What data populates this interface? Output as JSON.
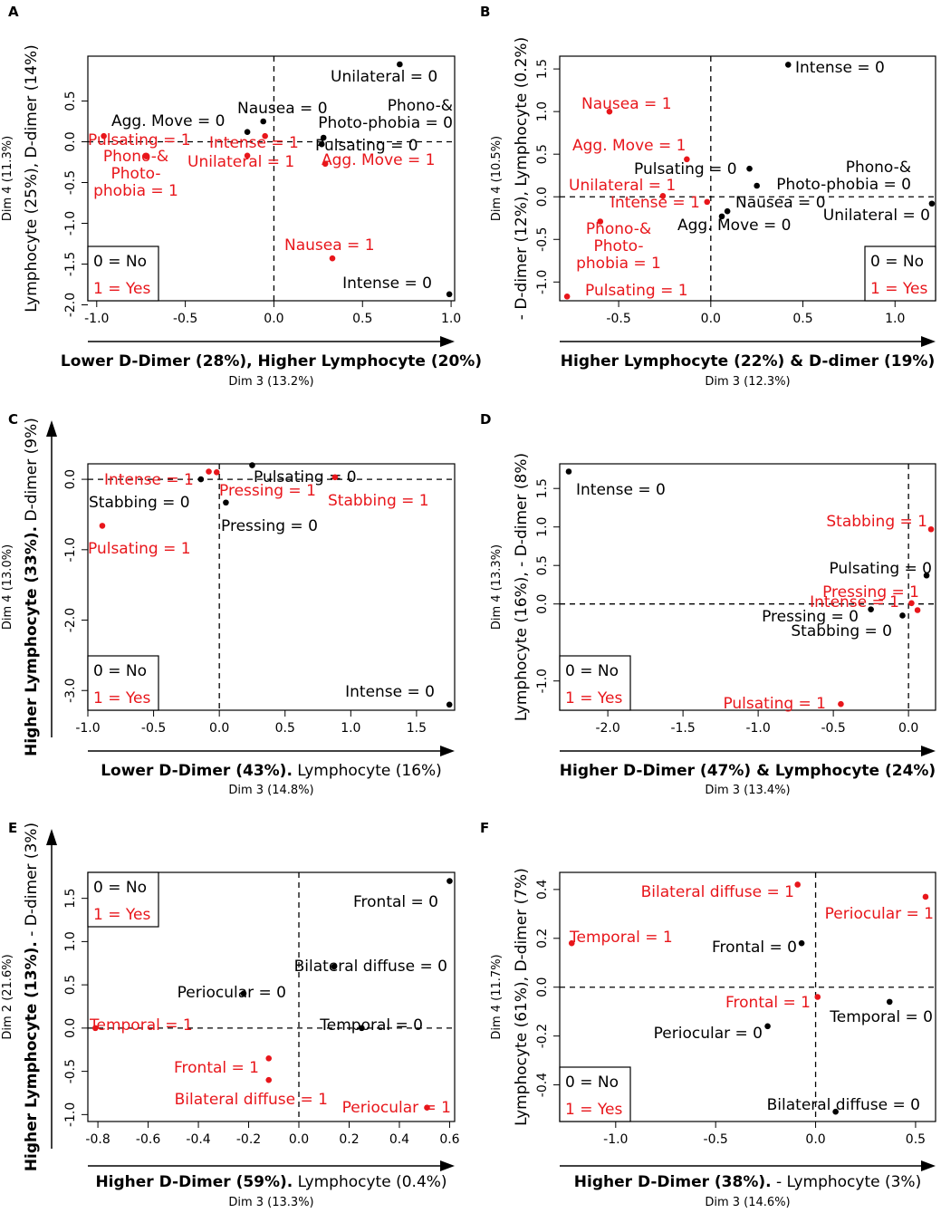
{
  "legend": {
    "no": "0 = No",
    "yes": "1 = Yes"
  },
  "colors": {
    "no": "#000000",
    "yes": "#e8161b"
  },
  "chart_data": [
    {
      "type": "scatter",
      "panel": "A",
      "title": "",
      "xlabel": "Lower D-Dimer (28%), Higher Lymphocyte (20%)",
      "xlabel_bold": "Lower D-Dimer (28%), Higher Lymphocyte (20%)",
      "xlabel_rest": "",
      "xsub": "Dim 3 (13.2%)",
      "ylabel": "Lymphocyte (25%), D-dimer (14%)",
      "ysub": "Dim 4 (11.3%)",
      "xlim": [
        -1.05,
        1.02
      ],
      "ylim": [
        -1.95,
        1.05
      ],
      "xticks": [
        -1.0,
        -0.5,
        0.0,
        0.5,
        1.0
      ],
      "xtick_labels": [
        "-1.0",
        "-0.5",
        "0.0",
        "0.5",
        "1.0"
      ],
      "yticks": [
        -2.0,
        -1.5,
        -1.0,
        -0.5,
        0.0,
        0.5
      ],
      "ytick_labels": [
        "-2.0",
        "-1.5",
        "-1.0",
        "-0.5",
        "0.0",
        "0.5"
      ],
      "legend_position": "bottom-left",
      "points": [
        {
          "x": 0.71,
          "y": 0.95,
          "label": "Unilateral = 0",
          "group": "no"
        },
        {
          "x": -0.06,
          "y": 0.25,
          "label": "Nausea = 0",
          "group": "no"
        },
        {
          "x": 0.28,
          "y": 0.05,
          "label": "Phono-& Photo-phobia = 0",
          "group": "no"
        },
        {
          "x": -0.15,
          "y": 0.12,
          "label": "Agg. Move = 0",
          "group": "no"
        },
        {
          "x": 0.27,
          "y": -0.03,
          "label": "Pulsating = 0",
          "group": "no"
        },
        {
          "x": 0.99,
          "y": -1.87,
          "label": "Intense = 0",
          "group": "no"
        },
        {
          "x": -0.96,
          "y": 0.07,
          "label": "Pulsating = 1",
          "group": "yes"
        },
        {
          "x": -0.05,
          "y": 0.07,
          "label": "Intense = 1",
          "group": "yes"
        },
        {
          "x": -0.72,
          "y": -0.18,
          "label": "Phono-& Photo-phobia = 1",
          "group": "yes"
        },
        {
          "x": -0.15,
          "y": -0.17,
          "label": "Unilateral = 1",
          "group": "yes"
        },
        {
          "x": 0.29,
          "y": -0.27,
          "label": "Agg. Move = 1",
          "group": "yes"
        },
        {
          "x": 0.33,
          "y": -1.43,
          "label": "Nausea = 1",
          "group": "yes"
        }
      ]
    },
    {
      "type": "scatter",
      "panel": "B",
      "title": "",
      "xlabel": "Higher Lymphocyte (22%) & D-dimer (19%)",
      "xlabel_bold": "Higher Lymphocyte (22%) & D-dimer (19%)",
      "xlabel_rest": "",
      "xsub": "Dim 3 (12.3%)",
      "ylabel": "- D-dimer (12%), Lymphocyte (0.2%)",
      "ysub": "Dim 4 (10.5%)",
      "xlim": [
        -0.82,
        1.22
      ],
      "ylim": [
        -1.22,
        1.65
      ],
      "xticks": [
        -0.5,
        0.0,
        0.5,
        1.0
      ],
      "xtick_labels": [
        "-0.5",
        "0.0",
        "0.5",
        "1.0"
      ],
      "yticks": [
        -1.0,
        -0.5,
        0.0,
        0.5,
        1.0,
        1.5
      ],
      "ytick_labels": [
        "-1.0",
        "-0.5",
        "0.0",
        "0.5",
        "1.0",
        "1.5"
      ],
      "legend_position": "bottom-right",
      "points": [
        {
          "x": 0.42,
          "y": 1.55,
          "label": "Intense = 0",
          "group": "no"
        },
        {
          "x": 0.21,
          "y": 0.33,
          "label": "Pulsating = 0",
          "group": "no"
        },
        {
          "x": 0.25,
          "y": 0.13,
          "label": "Phono-& Photo-phobia = 0",
          "group": "no"
        },
        {
          "x": 0.09,
          "y": -0.17,
          "label": "Nausea = 0",
          "group": "no"
        },
        {
          "x": 0.06,
          "y": -0.23,
          "label": "Agg. Move = 0",
          "group": "no"
        },
        {
          "x": 1.2,
          "y": -0.08,
          "label": "Unilateral = 0",
          "group": "no"
        },
        {
          "x": -0.55,
          "y": 1.0,
          "label": "Nausea = 1",
          "group": "yes"
        },
        {
          "x": -0.13,
          "y": 0.44,
          "label": "Agg. Move = 1",
          "group": "yes"
        },
        {
          "x": -0.26,
          "y": 0.01,
          "label": "Unilateral = 1",
          "group": "yes"
        },
        {
          "x": -0.02,
          "y": -0.06,
          "label": "Intense = 1",
          "group": "yes"
        },
        {
          "x": -0.6,
          "y": -0.29,
          "label": "Phono-& Photo-phobia = 1",
          "group": "yes"
        },
        {
          "x": -0.78,
          "y": -1.17,
          "label": "Pulsating = 1",
          "group": "yes"
        }
      ]
    },
    {
      "type": "scatter",
      "panel": "C",
      "title": "",
      "xlabel": "Lower D-Dimer (43%). Lymphocyte (16%)",
      "xlabel_bold": "Lower D-Dimer (43%).",
      "xlabel_rest": " Lymphocyte (16%)",
      "xsub": "Dim 3 (14.8%)",
      "ylabel": "Higher Lymphocyte (33%). D-dimer (9%)",
      "ylabel_bold": "Higher Lymphocyte (33%).",
      "ylabel_rest": " D-dimer (9%)",
      "ysub": "Dim 4 (13.0%)",
      "xlim": [
        -1.0,
        1.79
      ],
      "ylim": [
        -3.28,
        0.22
      ],
      "xticks": [
        -1.0,
        -0.5,
        0.0,
        0.5,
        1.0,
        1.5
      ],
      "xtick_labels": [
        "-1.0",
        "-0.5",
        "0.0",
        "0.5",
        "1.0",
        "1.5"
      ],
      "yticks": [
        -3.0,
        -2.0,
        -1.0,
        0.0
      ],
      "ytick_labels": [
        "-3.0",
        "-2.0",
        "-1.0",
        "0.0"
      ],
      "legend_position": "bottom-left",
      "points": [
        {
          "x": 0.25,
          "y": 0.2,
          "label": "Pulsating = 0",
          "group": "no"
        },
        {
          "x": -0.14,
          "y": 0.0,
          "label": "Stabbing = 0",
          "group": "no"
        },
        {
          "x": 0.05,
          "y": -0.33,
          "label": "Pressing = 0",
          "group": "no"
        },
        {
          "x": 1.75,
          "y": -3.2,
          "label": "Intense = 0",
          "group": "no"
        },
        {
          "x": -0.08,
          "y": 0.11,
          "label": "Intense = 1",
          "group": "yes"
        },
        {
          "x": -0.02,
          "y": 0.1,
          "label": "Pressing = 1",
          "group": "yes"
        },
        {
          "x": 0.88,
          "y": 0.03,
          "label": "Stabbing = 1",
          "group": "yes"
        },
        {
          "x": -0.89,
          "y": -0.66,
          "label": "Pulsating = 1",
          "group": "yes"
        }
      ]
    },
    {
      "type": "scatter",
      "panel": "D",
      "title": "",
      "xlabel": "Higher D-Dimer (47%) & Lymphocyte (24%)",
      "xlabel_bold": "Higher D-Dimer (47%) & Lymphocyte (24%)",
      "xlabel_rest": "",
      "xsub": "Dim 3 (13.4%)",
      "ylabel": "Lymphocyte (16%), - D-dimer (8%)",
      "ysub": "Dim 4 (13.3%)",
      "xlim": [
        -2.32,
        0.18
      ],
      "ylim": [
        -1.38,
        1.82
      ],
      "xticks": [
        -2.0,
        -1.5,
        -1.0,
        -0.5,
        0.0
      ],
      "xtick_labels": [
        "-2.0",
        "-1.5",
        "-1.0",
        "-0.5",
        "0.0"
      ],
      "yticks": [
        -1.0,
        0.0,
        0.5,
        1.0,
        1.5
      ],
      "ytick_labels": [
        "-1.0",
        "0.0",
        "0.5",
        "1.0",
        "1.5"
      ],
      "legend_position": "bottom-left",
      "points": [
        {
          "x": -2.26,
          "y": 1.72,
          "label": "Intense = 0",
          "group": "no"
        },
        {
          "x": 0.12,
          "y": 0.37,
          "label": "Pulsating = 0",
          "group": "no"
        },
        {
          "x": -0.25,
          "y": -0.07,
          "label": "Pressing = 0",
          "group": "no"
        },
        {
          "x": -0.04,
          "y": -0.15,
          "label": "Stabbing = 0",
          "group": "no"
        },
        {
          "x": 0.15,
          "y": 0.97,
          "label": "Stabbing = 1",
          "group": "yes"
        },
        {
          "x": 0.06,
          "y": -0.08,
          "label": "Pressing = 1",
          "group": "yes"
        },
        {
          "x": 0.02,
          "y": 0.01,
          "label": "Intense = 1",
          "group": "yes"
        },
        {
          "x": -0.45,
          "y": -1.3,
          "label": "Pulsating = 1",
          "group": "yes"
        }
      ]
    },
    {
      "type": "scatter",
      "panel": "E",
      "title": "",
      "xlabel": "Higher D-Dimer (59%). Lymphocyte (0.4%)",
      "xlabel_bold": "Higher D-Dimer (59%).",
      "xlabel_rest": " Lymphocyte (0.4%)",
      "xsub": "Dim 3 (13.3%)",
      "ylabel": "Higher Lymphocyte (13%). - D-dimer (3%)",
      "ylabel_bold": "Higher Lymphocyte (13%).",
      "ylabel_rest": " - D-dimer (3%)",
      "ysub": "Dim 2 (21.6%)",
      "xlim": [
        -0.84,
        0.62
      ],
      "ylim": [
        -1.08,
        1.8
      ],
      "xticks": [
        -0.8,
        -0.6,
        -0.4,
        -0.2,
        0.0,
        0.2,
        0.4,
        0.6
      ],
      "xtick_labels": [
        "-0.8",
        "-0.6",
        "-0.4",
        "-0.2",
        "0.0",
        "0.2",
        "0.4",
        "0.6"
      ],
      "yticks": [
        -1.0,
        -0.5,
        0.0,
        0.5,
        1.0,
        1.5
      ],
      "ytick_labels": [
        "-1.0",
        "-0.5",
        "0.0",
        "0.5",
        "1.0",
        "1.5"
      ],
      "legend_position": "top-left",
      "points": [
        {
          "x": 0.6,
          "y": 1.7,
          "label": "Frontal = 0",
          "group": "no"
        },
        {
          "x": 0.14,
          "y": 0.71,
          "label": "Bilateral diffuse = 0",
          "group": "no"
        },
        {
          "x": -0.22,
          "y": 0.4,
          "label": "Periocular = 0",
          "group": "no"
        },
        {
          "x": 0.25,
          "y": 0.0,
          "label": "Temporal = 0",
          "group": "no"
        },
        {
          "x": -0.81,
          "y": 0.0,
          "label": "Temporal = 1",
          "group": "yes"
        },
        {
          "x": -0.12,
          "y": -0.35,
          "label": "Frontal = 1",
          "group": "yes"
        },
        {
          "x": -0.12,
          "y": -0.6,
          "label": "Bilateral diffuse = 1",
          "group": "yes"
        },
        {
          "x": 0.51,
          "y": -0.92,
          "label": "Periocular = 1",
          "group": "yes"
        }
      ]
    },
    {
      "type": "scatter",
      "panel": "F",
      "title": "",
      "xlabel": "Higher D-Dimer (38%). - Lymphocyte (3%)",
      "xlabel_bold": "Higher D-Dimer (38%).",
      "xlabel_rest": " - Lymphocyte (3%)",
      "xsub": "Dim 3 (14.6%)",
      "ylabel": "Lymphocyte (61%), D-dimer (7%)",
      "ysub": "Dim 4 (11.7%)",
      "xlim": [
        -1.28,
        0.6
      ],
      "ylim": [
        -0.55,
        0.47
      ],
      "xticks": [
        -1.0,
        -0.5,
        0.0,
        0.5
      ],
      "xtick_labels": [
        "-1.0",
        "-0.5",
        "0.0",
        "0.5"
      ],
      "yticks": [
        -0.4,
        -0.2,
        0.0,
        0.2,
        0.4
      ],
      "ytick_labels": [
        "-0.4",
        "-0.2",
        "0.0",
        "0.2",
        "0.4"
      ],
      "legend_position": "bottom-left",
      "points": [
        {
          "x": -0.07,
          "y": 0.18,
          "label": "Frontal = 0",
          "group": "no"
        },
        {
          "x": 0.37,
          "y": -0.06,
          "label": "Temporal = 0",
          "group": "no"
        },
        {
          "x": -0.24,
          "y": -0.16,
          "label": "Periocular = 0",
          "group": "no"
        },
        {
          "x": 0.1,
          "y": -0.51,
          "label": "Bilateral diffuse = 0",
          "group": "no"
        },
        {
          "x": -0.09,
          "y": 0.42,
          "label": "Bilateral diffuse = 1",
          "group": "yes"
        },
        {
          "x": 0.55,
          "y": 0.37,
          "label": "Periocular = 1",
          "group": "yes"
        },
        {
          "x": -1.22,
          "y": 0.18,
          "label": "Temporal = 1",
          "group": "yes"
        },
        {
          "x": 0.01,
          "y": -0.04,
          "label": "Frontal = 1",
          "group": "yes"
        }
      ]
    }
  ]
}
